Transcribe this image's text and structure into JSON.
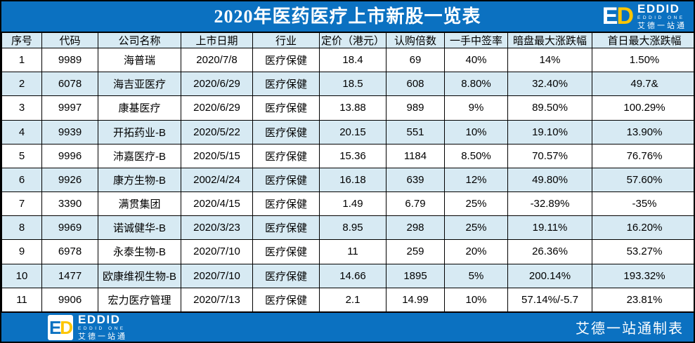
{
  "page": {
    "title": "2020年医药医疗上市新股一览表"
  },
  "logo": {
    "e": "E",
    "d": "D",
    "brand": "EDDID",
    "brand_sub": "EDDID ONE",
    "brand_cn": "艾德一站通"
  },
  "footer": {
    "credit": "艾德一站通制表"
  },
  "colors": {
    "brand_blue": "#0b71c1",
    "row_alt_blue": "#d7eaf3",
    "logo_yellow": "#fdc500",
    "border": "#000000"
  },
  "chart_data": {
    "type": "table",
    "title": "2020年医药医疗上市新股一览表",
    "columns": [
      "序号",
      "代码",
      "公司名称",
      "上市日期",
      "行业",
      "定价（港元）",
      "认购倍数",
      "一手中签率",
      "暗盘最大涨跌幅",
      "首日最大涨跌幅"
    ],
    "rows": [
      [
        "1",
        "9989",
        "海普瑞",
        "2020/7/8",
        "医疗保健",
        "18.4",
        "69",
        "40%",
        "14%",
        "1.50%"
      ],
      [
        "2",
        "6078",
        "海吉亚医疗",
        "2020/6/29",
        "医疗保健",
        "18.5",
        "608",
        "8.80%",
        "32.40%",
        "49.7&"
      ],
      [
        "3",
        "9997",
        "康基医疗",
        "2020/6/29",
        "医疗保健",
        "13.88",
        "989",
        "9%",
        "89.50%",
        "100.29%"
      ],
      [
        "4",
        "9939",
        "开拓药业-B",
        "2020/5/22",
        "医疗保健",
        "20.15",
        "551",
        "10%",
        "19.10%",
        "13.90%"
      ],
      [
        "5",
        "9996",
        "沛嘉医疗-B",
        "2020/5/15",
        "医疗保健",
        "15.36",
        "1184",
        "8.50%",
        "70.57%",
        "76.76%"
      ],
      [
        "6",
        "9926",
        "康方生物-B",
        "2002/4/24",
        "医疗保健",
        "16.18",
        "639",
        "12%",
        "49.80%",
        "57.60%"
      ],
      [
        "7",
        "3390",
        "满贯集团",
        "2020/4/15",
        "医疗保健",
        "1.49",
        "6.79",
        "25%",
        "-32.89%",
        "-35%"
      ],
      [
        "8",
        "9969",
        "诺诚健华-B",
        "2020/3/23",
        "医疗保健",
        "8.95",
        "298",
        "25%",
        "19.11%",
        "16.20%"
      ],
      [
        "9",
        "6978",
        "永泰生物-B",
        "2020/7/10",
        "医疗保健",
        "11",
        "259",
        "20%",
        "26.36%",
        "53.27%"
      ],
      [
        "10",
        "1477",
        "欧康维视生物-B",
        "2020/7/10",
        "医疗保健",
        "14.66",
        "1895",
        "5%",
        "200.14%",
        "193.32%"
      ],
      [
        "11",
        "9906",
        "宏力医疗管理",
        "2020/7/13",
        "医疗保健",
        "2.1",
        "14.99",
        "10%",
        "57.14%/-5.7",
        "23.81%"
      ]
    ]
  }
}
